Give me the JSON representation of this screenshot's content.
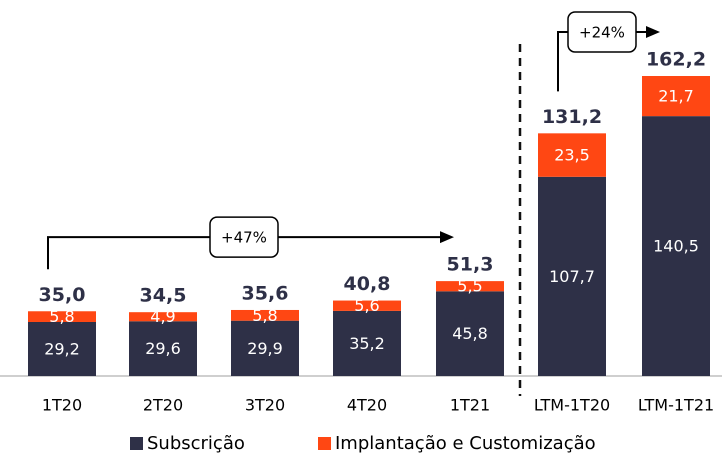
{
  "chart_data": {
    "type": "stacked_bar",
    "categories": [
      "1T20",
      "2T20",
      "3T20",
      "4T20",
      "1T21",
      "LTM-1T20",
      "LTM-1T21"
    ],
    "series": [
      {
        "name": "Subscrição",
        "color": "#2e3047",
        "values": [
          29.2,
          29.6,
          29.9,
          35.2,
          45.8,
          107.7,
          140.5
        ],
        "value_labels": [
          "29,2",
          "29,6",
          "29,9",
          "35,2",
          "45,8",
          "107,7",
          "140,5"
        ]
      },
      {
        "name": "Implantação e Customização",
        "color": "#ff4713",
        "values": [
          5.8,
          4.9,
          5.8,
          5.6,
          5.5,
          23.5,
          21.7
        ],
        "value_labels": [
          "5,8",
          "4,9",
          "5,8",
          "5,6",
          "5,5",
          "23,5",
          "21,7"
        ]
      }
    ],
    "totals": [
      35.0,
      34.5,
      35.6,
      40.8,
      51.3,
      131.2,
      162.2
    ],
    "total_labels": [
      "35,0",
      "34,5",
      "35,6",
      "40,8",
      "51,3",
      "131,2",
      "162,2"
    ],
    "annotations": [
      {
        "text": "+47%",
        "from": "1T20",
        "to": "1T21"
      },
      {
        "text": "+24%",
        "from": "LTM-1T20",
        "to": "LTM-1T21"
      }
    ]
  }
}
